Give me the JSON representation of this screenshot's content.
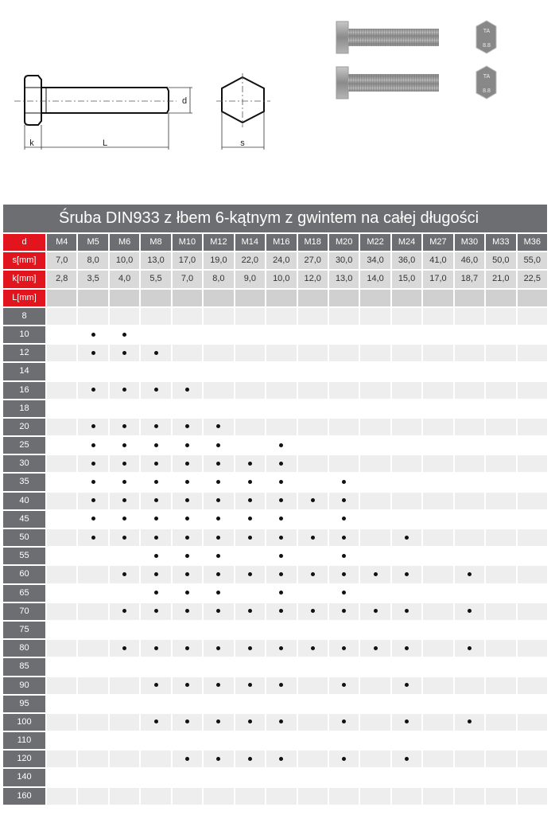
{
  "diagram": {
    "labels": {
      "k": "k",
      "L": "L",
      "d": "d",
      "s": "s"
    }
  },
  "photo": {
    "head_marking_top": "TA",
    "head_marking_bottom": "8.8"
  },
  "table": {
    "title": "Śruba DIN933 z łbem 6-kątnym z gwintem na całej długości",
    "header_label": "d",
    "sizes": [
      "M4",
      "M5",
      "M6",
      "M8",
      "M10",
      "M12",
      "M14",
      "M16",
      "M18",
      "M20",
      "M22",
      "M24",
      "M27",
      "M30",
      "M33",
      "M36"
    ],
    "s_label": "s[mm]",
    "s_values": [
      "7,0",
      "8,0",
      "10,0",
      "13,0",
      "17,0",
      "19,0",
      "22,0",
      "24,0",
      "27,0",
      "30,0",
      "34,0",
      "36,0",
      "41,0",
      "46,0",
      "50,0",
      "55,0"
    ],
    "k_label": "k[mm]",
    "k_values": [
      "2,8",
      "3,5",
      "4,0",
      "5,5",
      "7,0",
      "8,0",
      "9,0",
      "10,0",
      "12,0",
      "13,0",
      "14,0",
      "15,0",
      "17,0",
      "18,7",
      "21,0",
      "22,5"
    ],
    "L_label": "L[mm]",
    "lengths": [
      {
        "L": "8",
        "available": []
      },
      {
        "L": "10",
        "available": [
          "M5",
          "M6"
        ]
      },
      {
        "L": "12",
        "available": [
          "M5",
          "M6",
          "M8"
        ]
      },
      {
        "L": "14",
        "available": []
      },
      {
        "L": "16",
        "available": [
          "M5",
          "M6",
          "M8",
          "M10"
        ]
      },
      {
        "L": "18",
        "available": []
      },
      {
        "L": "20",
        "available": [
          "M5",
          "M6",
          "M8",
          "M10",
          "M12"
        ]
      },
      {
        "L": "25",
        "available": [
          "M5",
          "M6",
          "M8",
          "M10",
          "M12",
          "M16"
        ]
      },
      {
        "L": "30",
        "available": [
          "M5",
          "M6",
          "M8",
          "M10",
          "M12",
          "M14",
          "M16"
        ]
      },
      {
        "L": "35",
        "available": [
          "M5",
          "M6",
          "M8",
          "M10",
          "M12",
          "M14",
          "M16",
          "M20"
        ]
      },
      {
        "L": "40",
        "available": [
          "M5",
          "M6",
          "M8",
          "M10",
          "M12",
          "M14",
          "M16",
          "M18",
          "M20"
        ]
      },
      {
        "L": "45",
        "available": [
          "M5",
          "M6",
          "M8",
          "M10",
          "M12",
          "M14",
          "M16",
          "M20"
        ]
      },
      {
        "L": "50",
        "available": [
          "M5",
          "M6",
          "M8",
          "M10",
          "M12",
          "M14",
          "M16",
          "M18",
          "M20",
          "M24"
        ]
      },
      {
        "L": "55",
        "available": [
          "M8",
          "M10",
          "M12",
          "M16",
          "M20"
        ]
      },
      {
        "L": "60",
        "available": [
          "M6",
          "M8",
          "M10",
          "M12",
          "M14",
          "M16",
          "M18",
          "M20",
          "M22",
          "M24",
          "M30"
        ]
      },
      {
        "L": "65",
        "available": [
          "M8",
          "M10",
          "M12",
          "M16",
          "M20"
        ]
      },
      {
        "L": "70",
        "available": [
          "M6",
          "M8",
          "M10",
          "M12",
          "M14",
          "M16",
          "M18",
          "M20",
          "M22",
          "M24",
          "M30"
        ]
      },
      {
        "L": "75",
        "available": []
      },
      {
        "L": "80",
        "available": [
          "M6",
          "M8",
          "M10",
          "M12",
          "M14",
          "M16",
          "M18",
          "M20",
          "M22",
          "M24",
          "M30"
        ]
      },
      {
        "L": "85",
        "available": []
      },
      {
        "L": "90",
        "available": [
          "M8",
          "M10",
          "M12",
          "M14",
          "M16",
          "M20",
          "M24"
        ]
      },
      {
        "L": "95",
        "available": []
      },
      {
        "L": "100",
        "available": [
          "M8",
          "M10",
          "M12",
          "M14",
          "M16",
          "M20",
          "M24",
          "M30"
        ]
      },
      {
        "L": "110",
        "available": []
      },
      {
        "L": "120",
        "available": [
          "M10",
          "M12",
          "M14",
          "M16",
          "M20",
          "M24"
        ]
      },
      {
        "L": "140",
        "available": []
      },
      {
        "L": "160",
        "available": []
      }
    ]
  },
  "colors": {
    "header_red": "#e2141d",
    "header_gray": "#6d6e71"
  }
}
